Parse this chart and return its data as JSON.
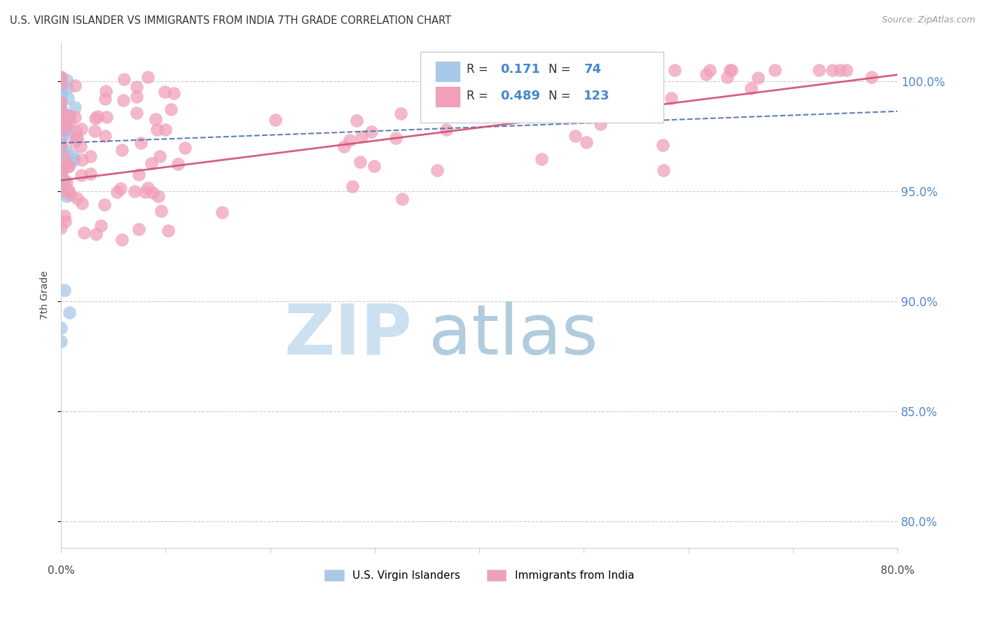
{
  "title": "U.S. VIRGIN ISLANDER VS IMMIGRANTS FROM INDIA 7TH GRADE CORRELATION CHART",
  "source": "Source: ZipAtlas.com",
  "ylabel": "7th Grade",
  "ytick_labels": [
    "80.0%",
    "85.0%",
    "90.0%",
    "95.0%",
    "100.0%"
  ],
  "ytick_values": [
    0.8,
    0.85,
    0.9,
    0.95,
    1.0
  ],
  "xmin": 0.0,
  "xmax": 0.8,
  "ymin": 0.788,
  "ymax": 1.018,
  "legend1_label": "U.S. Virgin Islanders",
  "legend2_label": "Immigrants from India",
  "R1": 0.171,
  "N1": 74,
  "R2": 0.489,
  "N2": 123,
  "blue_color": "#a8c8e8",
  "pink_color": "#f0a0b8",
  "blue_line_color": "#4466aa",
  "pink_line_color": "#d05070",
  "watermark_zip_color": "#cce0f0",
  "watermark_atlas_color": "#b0ccdd"
}
